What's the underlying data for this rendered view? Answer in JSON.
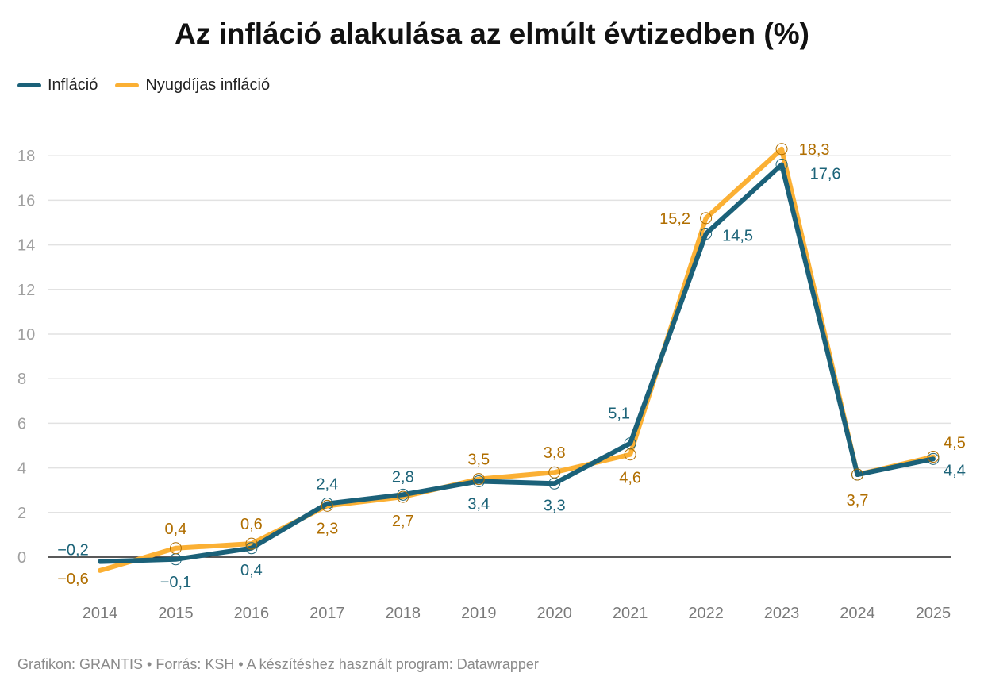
{
  "title": "Az infláció alakulása az elmúlt évtizedben (%)",
  "footer": "Grafikon: GRANTIS • Forrás: KSH • A készítéshez használt program: Datawrapper",
  "chart_data": {
    "type": "line",
    "title": "Az infláció alakulása az elmúlt évtizedben (%)",
    "x": [
      "2014",
      "2015",
      "2016",
      "2017",
      "2018",
      "2019",
      "2020",
      "2021",
      "2022",
      "2023",
      "2024",
      "2025"
    ],
    "ylim": [
      -1,
      18.5
    ],
    "yticks": [
      0,
      2,
      4,
      6,
      8,
      10,
      12,
      14,
      16,
      18
    ],
    "grid": true,
    "legend": "top-left",
    "series": [
      {
        "name": "Infláció",
        "color": "#1b6179",
        "label_color": "#1d6479",
        "values": [
          -0.2,
          -0.1,
          0.4,
          2.4,
          2.8,
          3.4,
          3.3,
          5.1,
          14.5,
          17.6,
          3.7,
          4.4
        ]
      },
      {
        "name": "Nyugdíjas infláció",
        "color": "#fbb034",
        "label_color": "#b06e00",
        "values": [
          -0.6,
          0.4,
          0.6,
          2.3,
          2.7,
          3.5,
          3.8,
          4.6,
          15.2,
          18.3,
          3.7,
          4.5
        ]
      }
    ]
  }
}
